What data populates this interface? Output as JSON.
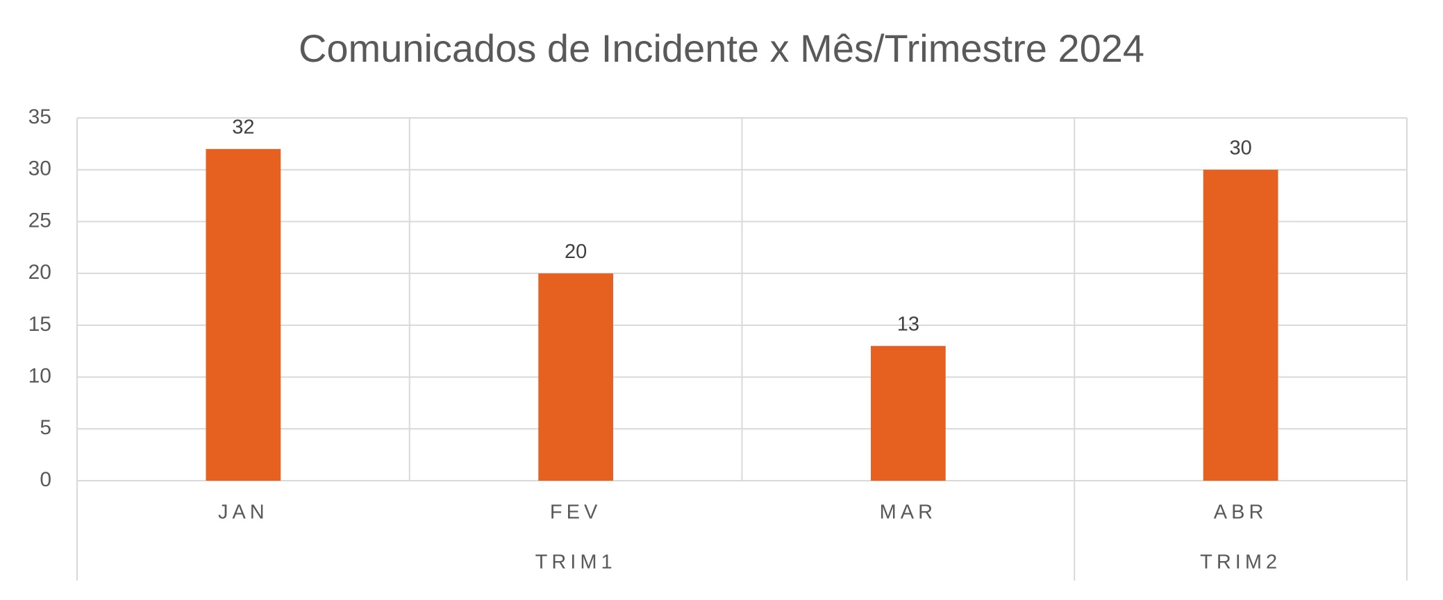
{
  "chart_data": {
    "type": "bar",
    "title": "Comunicados de Incidente x Mês/Trimestre 2024",
    "categories": [
      "JAN",
      "FEV",
      "MAR",
      "ABR"
    ],
    "category_groups": [
      "TRIM1",
      null,
      null,
      "TRIM2"
    ],
    "values": [
      32,
      20,
      13,
      30
    ],
    "color": "#e6601f",
    "ylim": [
      0,
      35
    ],
    "yticks": [
      0,
      5,
      10,
      15,
      20,
      25,
      30,
      35
    ],
    "grid": true
  }
}
